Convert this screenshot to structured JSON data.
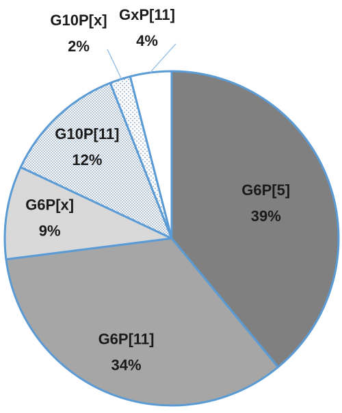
{
  "chart_data": {
    "type": "pie",
    "categories": [
      "G6P[5]",
      "G6P[11]",
      "G6P[x]",
      "G10P[11]",
      "G10P[x]",
      "GxP[11]"
    ],
    "values": [
      39,
      34,
      9,
      12,
      2,
      4
    ],
    "value_labels": [
      "39%",
      "34%",
      "9%",
      "12%",
      "2%",
      "4%"
    ],
    "colors": [
      "#808080",
      "#a6a6a6",
      "#d9d9d9",
      "#8ea9c8",
      "#8ea9c8",
      "#ffffff"
    ],
    "patterns": [
      null,
      null,
      null,
      "dense-dots",
      "sparse-dots",
      null
    ],
    "edge_color": "#5b9bd5"
  }
}
